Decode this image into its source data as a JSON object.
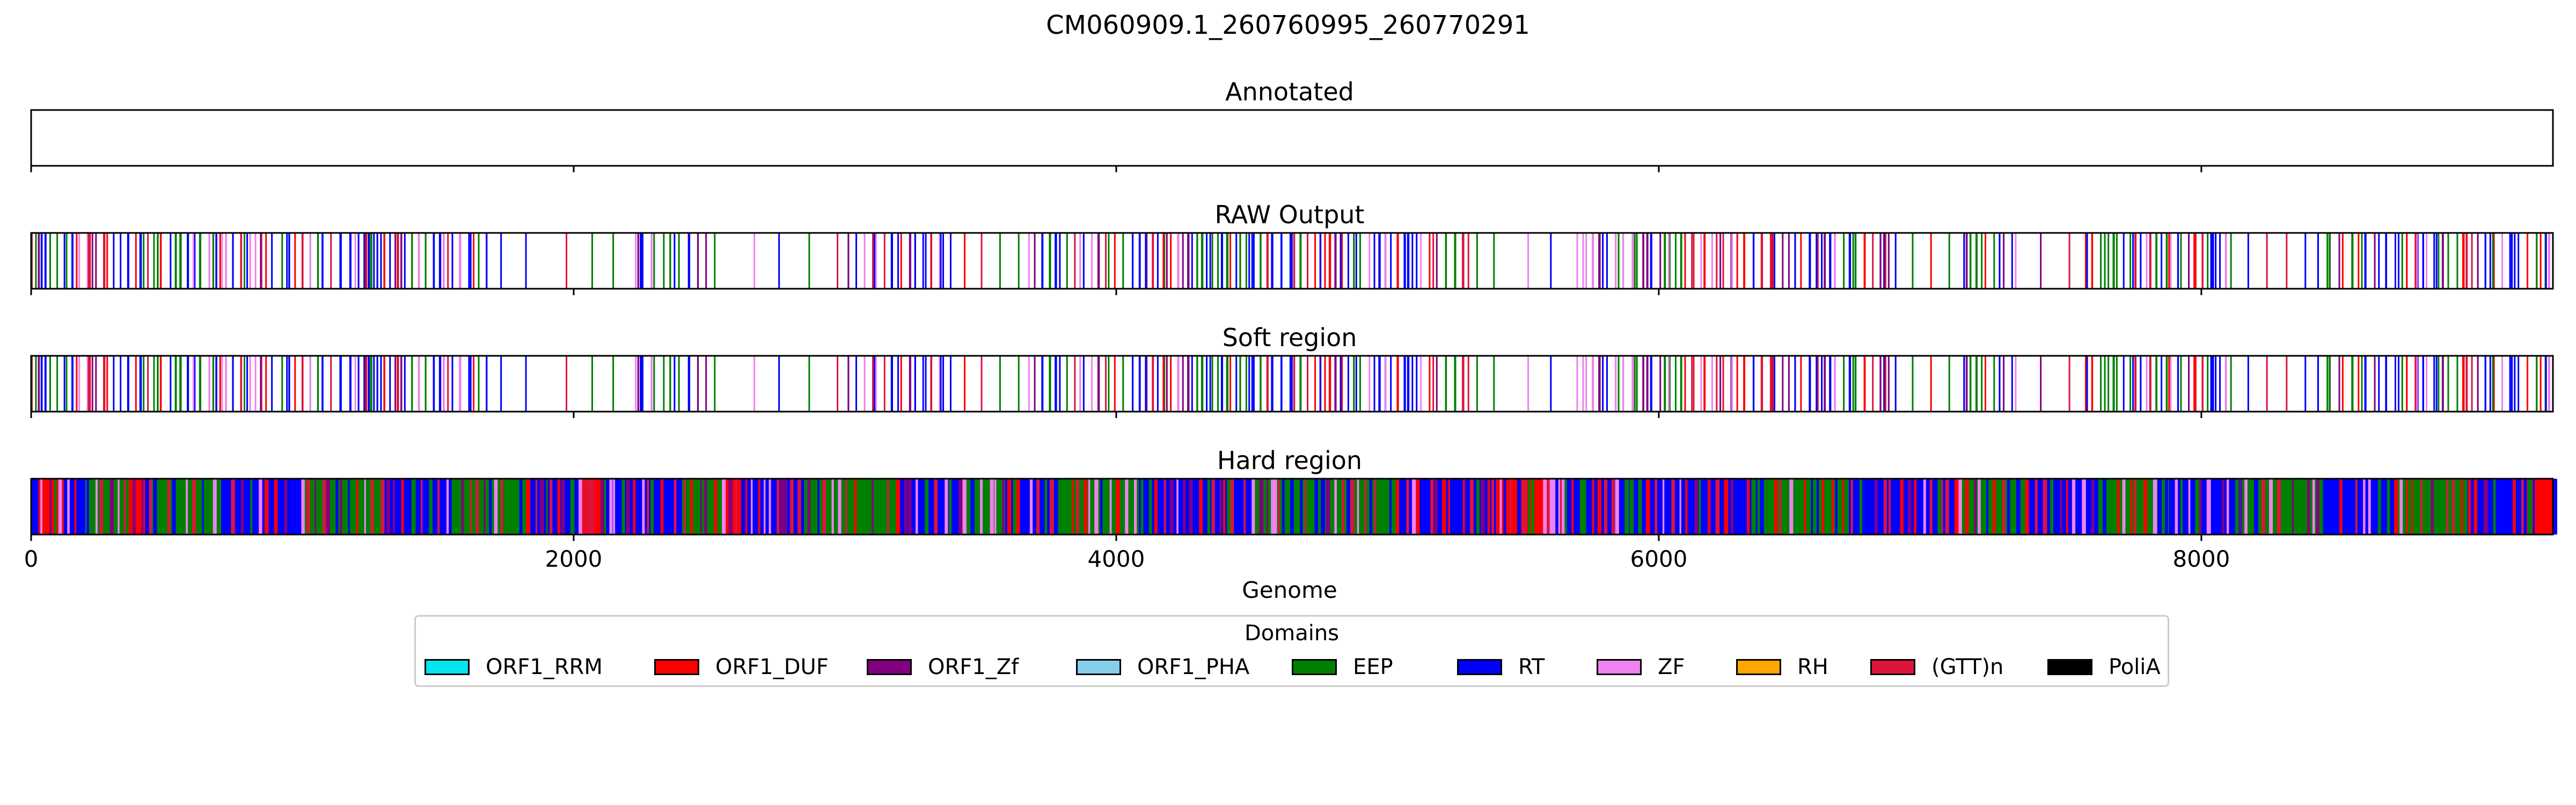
{
  "chart_data": {
    "type": "bar",
    "title": "CM060909.1_260760995_260770291",
    "xlabel": "Genome",
    "xlim": [
      0,
      9296
    ],
    "xticks": [
      0,
      2000,
      4000,
      6000,
      8000
    ],
    "legend_title": "Domains",
    "legend_position": "bottom-center",
    "legend": [
      {
        "name": "ORF1_RRM",
        "color": "#00e5ee"
      },
      {
        "name": "ORF1_DUF",
        "color": "#ff0000"
      },
      {
        "name": "ORF1_Zf",
        "color": "#800080"
      },
      {
        "name": "ORF1_PHA",
        "color": "#87ceeb"
      },
      {
        "name": "EEP",
        "color": "#008000"
      },
      {
        "name": "RT",
        "color": "#0000ff"
      },
      {
        "name": "ZF",
        "color": "#ee82ee"
      },
      {
        "name": "RH",
        "color": "#ffa500"
      },
      {
        "name": "(GTT)n",
        "color": "#dc143c"
      },
      {
        "name": "PoliA",
        "color": "#000000"
      }
    ],
    "panels": [
      {
        "title": "Annotated",
        "mode": "empty",
        "segments": []
      },
      {
        "title": "RAW Output",
        "mode": "lines",
        "seed": 11,
        "dense_ranges": [
          [
            0,
            900
          ],
          [
            900,
            1700
          ],
          [
            2200,
            2500
          ],
          [
            3000,
            3400
          ],
          [
            3650,
            5350
          ],
          [
            5700,
            6900
          ],
          [
            7100,
            7300
          ],
          [
            7550,
            8100
          ],
          [
            8400,
            9296
          ]
        ],
        "segments": []
      },
      {
        "title": "Soft region",
        "mode": "lines",
        "seed": 11,
        "dense_ranges": [
          [
            0,
            900
          ],
          [
            900,
            1700
          ],
          [
            2200,
            2500
          ],
          [
            3000,
            3400
          ],
          [
            3650,
            5350
          ],
          [
            5700,
            6900
          ],
          [
            7100,
            7300
          ],
          [
            7550,
            8100
          ],
          [
            8400,
            9296
          ]
        ],
        "segments": []
      },
      {
        "title": "Hard region",
        "mode": "filled",
        "segments": [
          {
            "start": 0,
            "end": 20,
            "color": "#0000ff"
          },
          {
            "start": 20,
            "end": 120,
            "color": "#ff0000"
          },
          {
            "start": 120,
            "end": 200,
            "color": "#0000ff"
          },
          {
            "start": 200,
            "end": 360,
            "color": "#008000"
          },
          {
            "start": 360,
            "end": 440,
            "color": "#ff0000"
          },
          {
            "start": 440,
            "end": 700,
            "color": "#008000"
          },
          {
            "start": 700,
            "end": 1000,
            "color": "#0000ff"
          },
          {
            "start": 1000,
            "end": 1300,
            "color": "#008000"
          },
          {
            "start": 1300,
            "end": 1560,
            "color": "#0000ff"
          },
          {
            "start": 1560,
            "end": 1840,
            "color": "#008000"
          },
          {
            "start": 1840,
            "end": 2020,
            "color": "#0000ff"
          },
          {
            "start": 2020,
            "end": 2100,
            "color": "#ff0000"
          },
          {
            "start": 2100,
            "end": 2400,
            "color": "#0000ff"
          },
          {
            "start": 2400,
            "end": 2560,
            "color": "#008000"
          },
          {
            "start": 2560,
            "end": 2640,
            "color": "#ff0000"
          },
          {
            "start": 2640,
            "end": 2850,
            "color": "#0000ff"
          },
          {
            "start": 2850,
            "end": 3200,
            "color": "#008000"
          },
          {
            "start": 3200,
            "end": 3440,
            "color": "#0000ff"
          },
          {
            "start": 3440,
            "end": 3590,
            "color": "#008000"
          },
          {
            "start": 3590,
            "end": 3760,
            "color": "#0000ff"
          },
          {
            "start": 3760,
            "end": 4100,
            "color": "#008000"
          },
          {
            "start": 4100,
            "end": 4500,
            "color": "#0000ff"
          },
          {
            "start": 4500,
            "end": 5050,
            "color": "#008000"
          },
          {
            "start": 5050,
            "end": 5400,
            "color": "#0000ff"
          },
          {
            "start": 5400,
            "end": 5560,
            "color": "#ff0000"
          },
          {
            "start": 5560,
            "end": 5660,
            "color": "#ee82ee"
          },
          {
            "start": 5660,
            "end": 6400,
            "color": "#0000ff"
          },
          {
            "start": 6400,
            "end": 6700,
            "color": "#008000"
          },
          {
            "start": 6700,
            "end": 7100,
            "color": "#0000ff"
          },
          {
            "start": 7100,
            "end": 7350,
            "color": "#008000"
          },
          {
            "start": 7350,
            "end": 7650,
            "color": "#0000ff"
          },
          {
            "start": 7650,
            "end": 7880,
            "color": "#008000"
          },
          {
            "start": 7880,
            "end": 8150,
            "color": "#0000ff"
          },
          {
            "start": 8150,
            "end": 8450,
            "color": "#008000"
          },
          {
            "start": 8450,
            "end": 8720,
            "color": "#0000ff"
          },
          {
            "start": 8720,
            "end": 8980,
            "color": "#008000"
          },
          {
            "start": 8980,
            "end": 9200,
            "color": "#0000ff"
          },
          {
            "start": 9200,
            "end": 9296,
            "color": "#ff0000"
          }
        ]
      }
    ]
  }
}
